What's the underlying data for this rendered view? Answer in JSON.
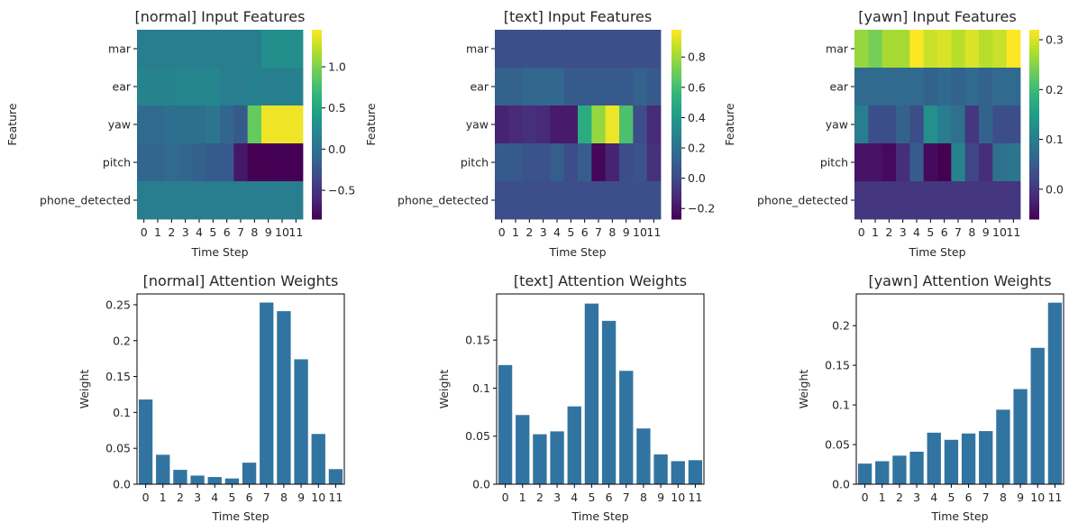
{
  "palette": {
    "bar_color": "#3274a1",
    "colormap": "viridis"
  },
  "chart_data": [
    {
      "type": "heatmap",
      "title": "[normal] Input Features",
      "xlabel": "Time Step",
      "ylabel": "Feature",
      "x_categories": [
        "0",
        "1",
        "2",
        "3",
        "4",
        "5",
        "6",
        "7",
        "8",
        "9",
        "10",
        "11"
      ],
      "y_categories": [
        "mar",
        "ear",
        "yaw",
        "pitch",
        "phone_detected"
      ],
      "values": [
        [
          0.12,
          0.12,
          0.12,
          0.12,
          0.12,
          0.12,
          0.12,
          0.12,
          0.12,
          0.28,
          0.28,
          0.28
        ],
        [
          0.18,
          0.18,
          0.18,
          0.2,
          0.2,
          0.2,
          0.12,
          0.12,
          0.15,
          0.15,
          0.15,
          0.15
        ],
        [
          -0.05,
          -0.05,
          -0.02,
          0.0,
          0.0,
          0.05,
          -0.1,
          -0.2,
          0.9,
          1.4,
          1.4,
          1.4
        ],
        [
          -0.1,
          -0.1,
          -0.05,
          -0.1,
          -0.15,
          -0.2,
          -0.2,
          -0.7,
          -0.85,
          -0.85,
          -0.85,
          -0.85
        ],
        [
          0.12,
          0.12,
          0.12,
          0.12,
          0.12,
          0.12,
          0.12,
          0.12,
          0.12,
          0.12,
          0.12,
          0.12
        ]
      ],
      "vmin": -0.85,
      "vmax": 1.45,
      "colorbar_ticks": [
        -0.5,
        0.0,
        0.5,
        1.0
      ]
    },
    {
      "type": "heatmap",
      "title": "[text] Input Features",
      "xlabel": "Time Step",
      "ylabel": "Feature",
      "x_categories": [
        "0",
        "1",
        "2",
        "3",
        "4",
        "5",
        "6",
        "7",
        "8",
        "9",
        "10",
        "11"
      ],
      "y_categories": [
        "mar",
        "ear",
        "yaw",
        "pitch",
        "phone_detected"
      ],
      "values": [
        [
          0.03,
          0.03,
          0.03,
          0.03,
          0.03,
          0.03,
          0.03,
          0.03,
          0.03,
          0.03,
          0.03,
          0.03
        ],
        [
          0.12,
          0.12,
          0.14,
          0.14,
          0.14,
          0.08,
          0.08,
          0.08,
          0.08,
          0.08,
          0.12,
          0.08
        ],
        [
          -0.15,
          -0.12,
          -0.1,
          -0.12,
          -0.18,
          -0.18,
          0.5,
          0.78,
          0.95,
          0.62,
          0.02,
          -0.12
        ],
        [
          0.08,
          0.08,
          0.05,
          0.05,
          0.1,
          0.02,
          0.1,
          -0.25,
          -0.15,
          0.02,
          0.05,
          -0.1
        ],
        [
          0.03,
          0.03,
          0.03,
          0.03,
          0.03,
          0.03,
          0.03,
          0.03,
          0.03,
          0.03,
          0.03,
          0.03
        ]
      ],
      "vmin": -0.27,
      "vmax": 0.98,
      "colorbar_ticks": [
        -0.2,
        0.0,
        0.2,
        0.4,
        0.6,
        0.8
      ]
    },
    {
      "type": "heatmap",
      "title": "[yawn] Input Features",
      "xlabel": "Time Step",
      "ylabel": "Feature",
      "x_categories": [
        "0",
        "1",
        "2",
        "3",
        "4",
        "5",
        "6",
        "7",
        "8",
        "9",
        "10",
        "11"
      ],
      "y_categories": [
        "mar",
        "ear",
        "yaw",
        "pitch",
        "phone_detected"
      ],
      "values": [
        [
          0.26,
          0.24,
          0.27,
          0.27,
          0.32,
          0.29,
          0.3,
          0.28,
          0.3,
          0.28,
          0.29,
          0.32
        ],
        [
          0.07,
          0.07,
          0.07,
          0.07,
          0.07,
          0.06,
          0.07,
          0.06,
          0.07,
          0.06,
          0.07,
          0.07
        ],
        [
          0.1,
          0.03,
          0.03,
          0.06,
          0.03,
          0.13,
          0.1,
          0.08,
          0.0,
          0.06,
          0.03,
          0.03
        ],
        [
          -0.04,
          -0.04,
          -0.05,
          -0.01,
          0.05,
          -0.05,
          -0.06,
          0.11,
          0.02,
          -0.01,
          0.08,
          0.09
        ],
        [
          0.0,
          0.0,
          0.0,
          0.0,
          0.0,
          0.0,
          0.0,
          0.0,
          0.0,
          0.0,
          0.0,
          0.0
        ]
      ],
      "vmin": -0.06,
      "vmax": 0.32,
      "colorbar_ticks": [
        0.0,
        0.1,
        0.2,
        0.3
      ]
    },
    {
      "type": "bar",
      "title": "[normal] Attention Weights",
      "xlabel": "Time Step",
      "ylabel": "Weight",
      "categories": [
        "0",
        "1",
        "2",
        "3",
        "4",
        "5",
        "6",
        "7",
        "8",
        "9",
        "10",
        "11"
      ],
      "values": [
        0.118,
        0.041,
        0.02,
        0.012,
        0.01,
        0.008,
        0.03,
        0.253,
        0.241,
        0.174,
        0.07,
        0.021
      ],
      "ylim": [
        0,
        0.265
      ],
      "yticks": [
        0.0,
        0.05,
        0.1,
        0.15,
        0.2,
        0.25
      ]
    },
    {
      "type": "bar",
      "title": "[text] Attention Weights",
      "xlabel": "Time Step",
      "ylabel": "Weight",
      "categories": [
        "0",
        "1",
        "2",
        "3",
        "4",
        "5",
        "6",
        "7",
        "8",
        "9",
        "10",
        "11"
      ],
      "values": [
        0.124,
        0.072,
        0.052,
        0.055,
        0.081,
        0.188,
        0.17,
        0.118,
        0.058,
        0.031,
        0.024,
        0.025
      ],
      "ylim": [
        0,
        0.198
      ],
      "yticks": [
        0.0,
        0.05,
        0.1,
        0.15
      ]
    },
    {
      "type": "bar",
      "title": "[yawn] Attention Weights",
      "xlabel": "Time Step",
      "ylabel": "Weight",
      "categories": [
        "0",
        "1",
        "2",
        "3",
        "4",
        "5",
        "6",
        "7",
        "8",
        "9",
        "10",
        "11"
      ],
      "values": [
        0.026,
        0.029,
        0.036,
        0.041,
        0.065,
        0.056,
        0.064,
        0.067,
        0.094,
        0.12,
        0.172,
        0.229
      ],
      "ylim": [
        0,
        0.24
      ],
      "yticks": [
        0.0,
        0.05,
        0.1,
        0.15,
        0.2
      ]
    }
  ]
}
